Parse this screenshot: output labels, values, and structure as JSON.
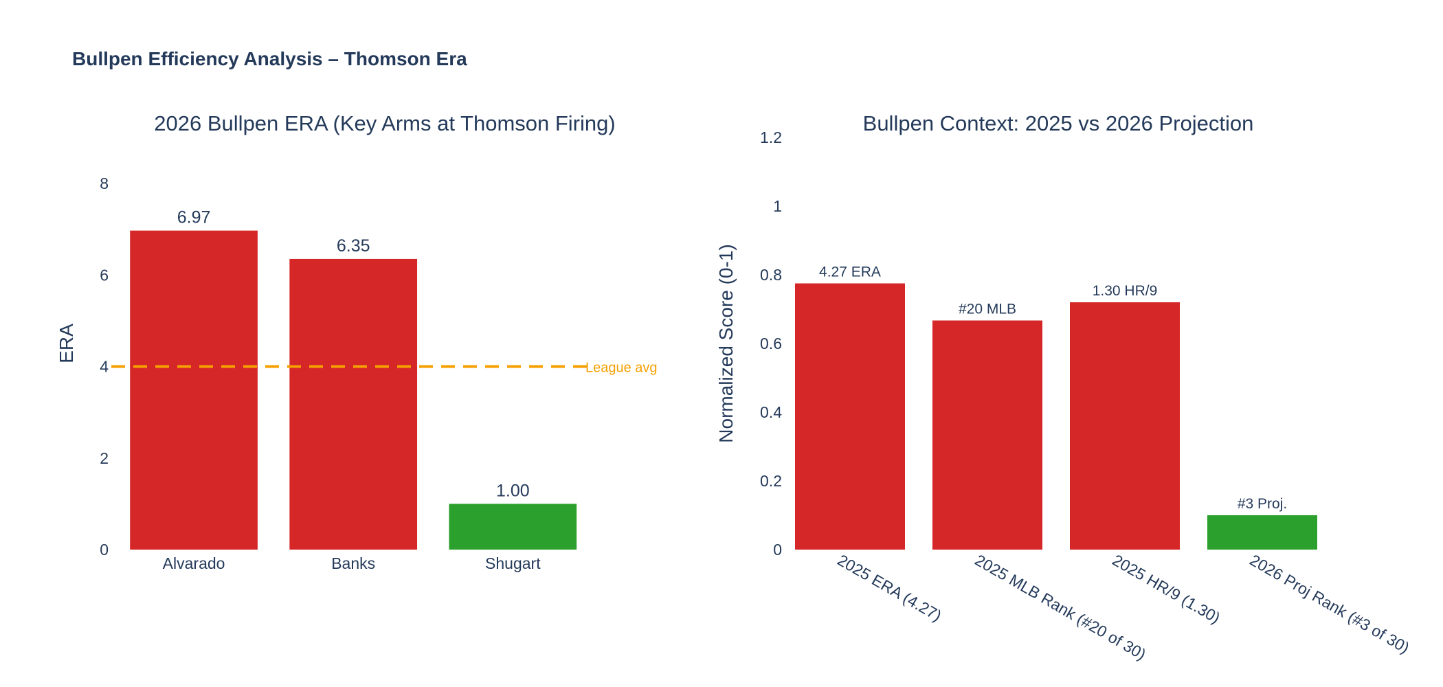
{
  "title": "Bullpen Efficiency Analysis – Thomson Era",
  "chart_data": [
    {
      "type": "bar",
      "title": "2026 Bullpen ERA (Key Arms at Thomson Firing)",
      "ylabel": "ERA",
      "ylim": [
        0,
        8
      ],
      "yticks": [
        "0",
        "2",
        "4",
        "6",
        "8"
      ],
      "categories": [
        "Alvarado",
        "Banks",
        "Shugart"
      ],
      "values": [
        6.97,
        6.35,
        1.0
      ],
      "data_labels": [
        "6.97",
        "6.35",
        "1.00"
      ],
      "colors": [
        "#d62728",
        "#d62728",
        "#2ca02c"
      ],
      "reference_line": {
        "value": 4.0,
        "label": "League avg",
        "color": "#f5a000",
        "style": "dashed"
      },
      "grid": false
    },
    {
      "type": "bar",
      "title": "Bullpen Context: 2025 vs 2026 Projection",
      "ylabel": "Normalized Score (0-1)",
      "ylim": [
        0,
        1.2
      ],
      "yticks": [
        "0",
        "0.2",
        "0.4",
        "0.6",
        "0.8",
        "1",
        "1.2"
      ],
      "categories": [
        "2025 ERA (4.27)",
        "2025 MLB Rank (#20 of 30)",
        "2025 HR/9 (1.30)",
        "2026 Proj Rank (#3 of 30)"
      ],
      "values": [
        0.775,
        0.667,
        0.72,
        0.1
      ],
      "data_labels": [
        "4.27 ERA",
        "#20 MLB",
        "1.30 HR/9",
        "#3 Proj."
      ],
      "colors": [
        "#d62728",
        "#d62728",
        "#d62728",
        "#2ca02c"
      ],
      "grid": false
    }
  ]
}
